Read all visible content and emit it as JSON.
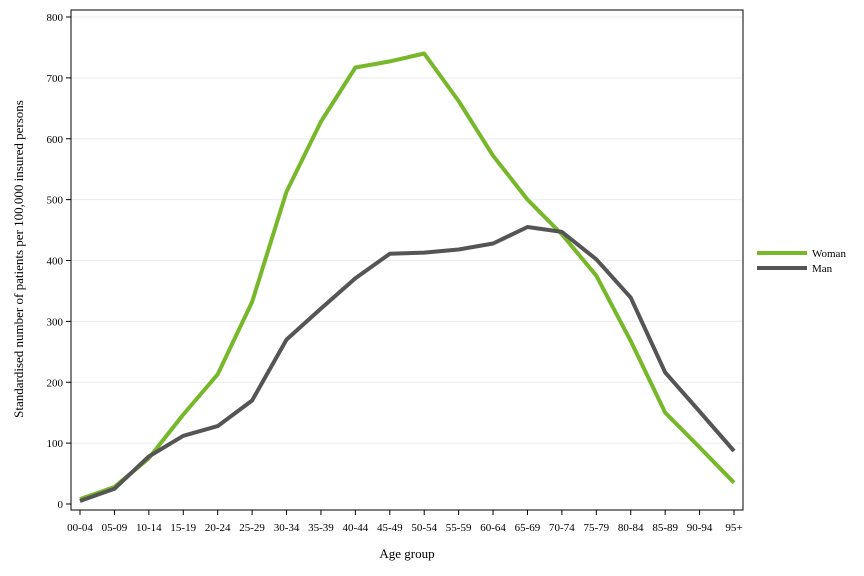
{
  "chart_data": {
    "type": "line",
    "xlabel": "Age group",
    "ylabel": "Standardised number of patients per 100,000 insured persons",
    "categories": [
      "00-04",
      "05-09",
      "10-14",
      "15-19",
      "20-24",
      "25-29",
      "30-34",
      "35-39",
      "40-44",
      "45-49",
      "50-54",
      "55-59",
      "60-64",
      "65-69",
      "70-74",
      "75-79",
      "80-84",
      "85-89",
      "90-94",
      "95+"
    ],
    "ylim": [
      0,
      800
    ],
    "yticks": [
      0,
      100,
      200,
      300,
      400,
      500,
      600,
      700,
      800
    ],
    "grid": true,
    "legend_position": "right",
    "series": [
      {
        "name": "Woman",
        "color": "#77b82a",
        "values": [
          8,
          28,
          75,
          147,
          213,
          332,
          513,
          628,
          717,
          727,
          740,
          662,
          572,
          500,
          443,
          375,
          268,
          150,
          93,
          35
        ]
      },
      {
        "name": "Man",
        "color": "#555555",
        "values": [
          5,
          25,
          78,
          112,
          128,
          170,
          270,
          321,
          371,
          411,
          413,
          418,
          428,
          455,
          447,
          402,
          339,
          216,
          152,
          87
        ]
      }
    ]
  }
}
